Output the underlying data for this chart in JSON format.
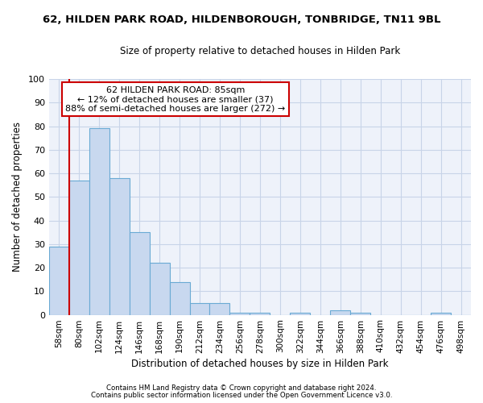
{
  "title1": "62, HILDEN PARK ROAD, HILDENBOROUGH, TONBRIDGE, TN11 9BL",
  "title2": "Size of property relative to detached houses in Hilden Park",
  "xlabel": "Distribution of detached houses by size in Hilden Park",
  "ylabel": "Number of detached properties",
  "categories": [
    "58sqm",
    "80sqm",
    "102sqm",
    "124sqm",
    "146sqm",
    "168sqm",
    "190sqm",
    "212sqm",
    "234sqm",
    "256sqm",
    "278sqm",
    "300sqm",
    "322sqm",
    "344sqm",
    "366sqm",
    "388sqm",
    "410sqm",
    "432sqm",
    "454sqm",
    "476sqm",
    "498sqm"
  ],
  "values": [
    29,
    57,
    79,
    58,
    35,
    22,
    14,
    5,
    5,
    1,
    1,
    0,
    1,
    0,
    2,
    1,
    0,
    0,
    0,
    1,
    0
  ],
  "bar_color": "#c8d8ef",
  "bar_edge_color": "#6aaad4",
  "vline_x": 0.5,
  "annotation_text": "62 HILDEN PARK ROAD: 85sqm\n← 12% of detached houses are smaller (37)\n88% of semi-detached houses are larger (272) →",
  "annotation_box_color": "#ffffff",
  "annotation_box_edge": "#cc0000",
  "ylim": [
    0,
    100
  ],
  "yticks": [
    0,
    10,
    20,
    30,
    40,
    50,
    60,
    70,
    80,
    90,
    100
  ],
  "grid_color": "#c8d4e8",
  "bg_color": "#eef2fa",
  "footnote1": "Contains HM Land Registry data © Crown copyright and database right 2024.",
  "footnote2": "Contains public sector information licensed under the Open Government Licence v3.0.",
  "title_fontsize": 9.5,
  "subtitle_fontsize": 8.5,
  "annotation_fontsize": 8,
  "xlabel_fontsize": 8.5,
  "ylabel_fontsize": 8.5,
  "bar_width": 1.0
}
